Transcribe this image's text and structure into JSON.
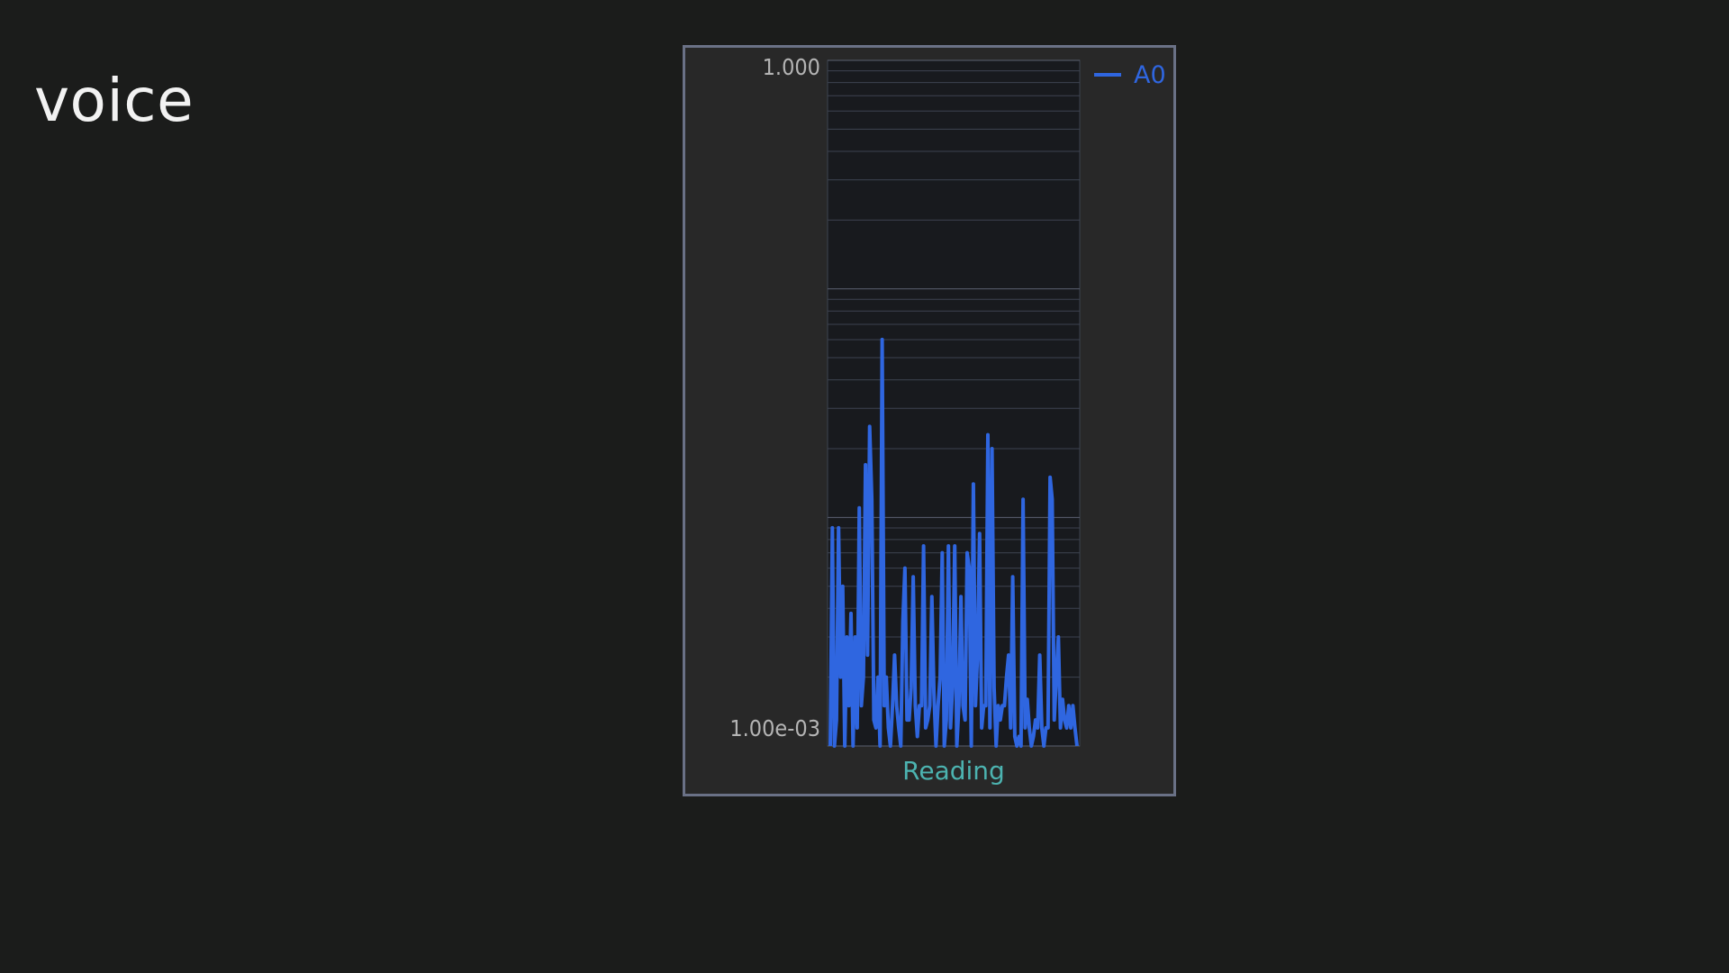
{
  "page": {
    "title": "voice"
  },
  "colors": {
    "background": "#1b1c1b",
    "panel": "#282828",
    "panel_border": "#6a7186",
    "plot_area": "#181a1e",
    "grid": "#3d4350",
    "series": "#2f66e0",
    "axis_label": "#4cb3b0",
    "tick_label": "#b4b4b4"
  },
  "chart_data": {
    "type": "line",
    "title": "",
    "xlabel": "Reading",
    "ylabel": "",
    "y_scale": "log",
    "ylim": [
      0.001,
      1.0
    ],
    "y_tick_labels": [
      "1.000",
      "1.00e-03"
    ],
    "grid": true,
    "legend": {
      "placement": "top-right",
      "entries": [
        "A0"
      ]
    },
    "series": [
      {
        "name": "A0",
        "x": [
          0,
          1,
          2,
          3,
          4,
          5,
          6,
          7,
          8,
          9,
          10,
          11,
          12,
          13,
          14,
          15,
          16,
          17,
          18,
          19,
          20,
          21,
          22,
          23,
          24,
          25,
          26,
          27,
          28,
          29,
          30,
          31,
          32,
          33,
          34,
          35,
          36,
          37,
          38,
          39,
          40,
          41,
          42,
          43,
          44,
          45,
          46,
          47,
          48,
          49,
          50,
          51,
          52,
          53,
          54,
          55,
          56,
          57,
          58,
          59,
          60,
          61,
          62,
          63,
          64,
          65,
          66,
          67,
          68,
          69,
          70,
          71,
          72,
          73,
          74,
          75,
          76,
          77,
          78,
          79,
          80,
          81,
          82,
          83,
          84,
          85,
          86,
          87,
          88,
          89,
          90,
          91,
          92,
          93,
          94,
          95,
          96,
          97,
          98,
          99,
          100,
          101,
          102,
          103,
          104,
          105,
          106,
          107,
          108,
          109,
          110,
          111,
          112,
          113,
          114,
          115,
          116,
          117,
          118,
          119
        ],
        "values": [
          0.001,
          0.009,
          0.001,
          0.0013,
          0.009,
          0.002,
          0.005,
          0.001,
          0.003,
          0.0015,
          0.0038,
          0.001,
          0.003,
          0.0012,
          0.011,
          0.0015,
          0.002,
          0.017,
          0.0025,
          0.025,
          0.012,
          0.0013,
          0.0012,
          0.002,
          0.001,
          0.06,
          0.0015,
          0.002,
          0.0012,
          0.001,
          0.0015,
          0.0025,
          0.0015,
          0.0012,
          0.001,
          0.0035,
          0.006,
          0.0013,
          0.0013,
          0.0018,
          0.0055,
          0.0015,
          0.0011,
          0.0015,
          0.0015,
          0.0075,
          0.0012,
          0.0013,
          0.0015,
          0.0045,
          0.0017,
          0.001,
          0.0015,
          0.002,
          0.007,
          0.001,
          0.0013,
          0.0075,
          0.0012,
          0.0018,
          0.0075,
          0.001,
          0.0015,
          0.0045,
          0.0015,
          0.0013,
          0.007,
          0.006,
          0.001,
          0.014,
          0.0015,
          0.0025,
          0.0085,
          0.0012,
          0.0015,
          0.0015,
          0.023,
          0.0012,
          0.02,
          0.0018,
          0.001,
          0.0015,
          0.0013,
          0.0015,
          0.0015,
          0.002,
          0.0025,
          0.0012,
          0.0055,
          0.0011,
          0.001,
          0.0011,
          0.001,
          0.012,
          0.0012,
          0.0016,
          0.0012,
          0.001,
          0.0011,
          0.0013,
          0.0012,
          0.0025,
          0.0012,
          0.001,
          0.0012,
          0.0012,
          0.015,
          0.012,
          0.0013,
          0.002,
          0.003,
          0.0012,
          0.0016,
          0.0013,
          0.0012,
          0.0015,
          0.0012,
          0.0015,
          0.0012,
          0.001
        ]
      }
    ]
  }
}
